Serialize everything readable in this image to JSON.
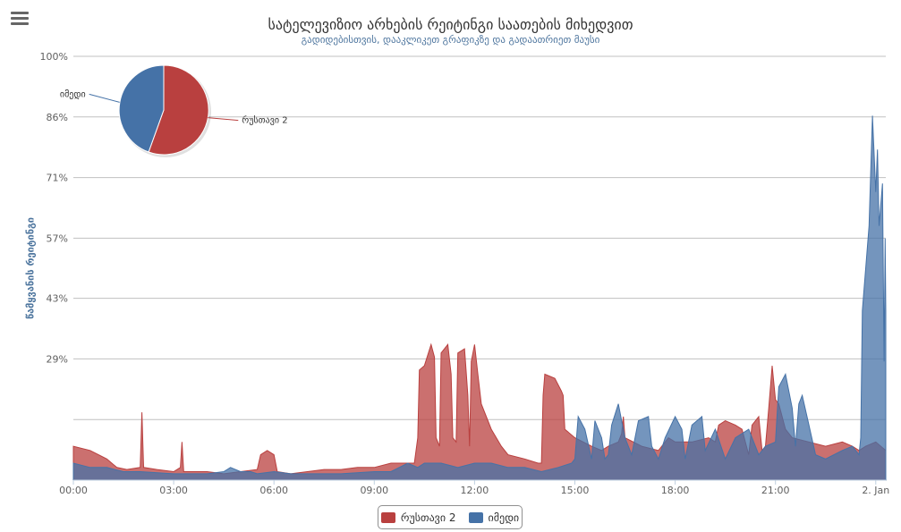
{
  "header": {
    "title": "სატელევიზიო არხების რეიტინგი საათების მიხედვით",
    "subtitle": "გადიდებისთვის, დააკლიკეთ გრაფიკზე და გადაათრიეთ მაუსი",
    "menu_icon": "hamburger-icon"
  },
  "chart_data": {
    "type": "area",
    "ylabel": "წამყვანის რეიტინგი",
    "y_ticks": [
      "100%",
      "86%",
      "71%",
      "57%",
      "43%",
      "29%"
    ],
    "y_tick_values": [
      100,
      86,
      71,
      57,
      43,
      29
    ],
    "ylim": [
      0,
      100
    ],
    "x_ticks": [
      "00:00",
      "03:00",
      "06:00",
      "09:00",
      "12:00",
      "15:00",
      "18:00",
      "21:00",
      "2. Jan"
    ],
    "x_tick_hours": [
      0,
      3,
      6,
      9,
      12,
      15,
      18,
      21,
      24
    ],
    "xlim_hours": [
      0,
      24.3
    ],
    "grid": true,
    "legend_placement": "bottom-center",
    "series": [
      {
        "name": "რუსთავი 2",
        "color": "#b9403f",
        "points": [
          [
            0.0,
            8
          ],
          [
            0.5,
            7
          ],
          [
            1.0,
            5
          ],
          [
            1.3,
            3
          ],
          [
            1.6,
            2.5
          ],
          [
            2.0,
            3
          ],
          [
            2.05,
            16
          ],
          [
            2.1,
            3
          ],
          [
            2.5,
            2.5
          ],
          [
            3.0,
            2
          ],
          [
            3.2,
            3
          ],
          [
            3.25,
            9
          ],
          [
            3.3,
            2
          ],
          [
            4.0,
            2
          ],
          [
            4.5,
            1.5
          ],
          [
            5.0,
            2
          ],
          [
            5.5,
            2.5
          ],
          [
            5.6,
            6
          ],
          [
            5.8,
            7
          ],
          [
            6.0,
            6
          ],
          [
            6.1,
            2
          ],
          [
            6.5,
            1.5
          ],
          [
            7.0,
            2
          ],
          [
            7.5,
            2.5
          ],
          [
            8.0,
            2.5
          ],
          [
            8.5,
            3
          ],
          [
            9.0,
            3
          ],
          [
            9.5,
            4
          ],
          [
            10.0,
            4
          ],
          [
            10.2,
            4
          ],
          [
            10.3,
            10
          ],
          [
            10.35,
            26
          ],
          [
            10.5,
            27
          ],
          [
            10.7,
            32
          ],
          [
            10.8,
            29
          ],
          [
            10.85,
            10
          ],
          [
            10.95,
            8
          ],
          [
            11.0,
            30
          ],
          [
            11.2,
            32
          ],
          [
            11.3,
            25
          ],
          [
            11.35,
            10
          ],
          [
            11.45,
            9
          ],
          [
            11.5,
            30
          ],
          [
            11.7,
            31
          ],
          [
            11.8,
            20
          ],
          [
            11.85,
            8
          ],
          [
            11.9,
            28
          ],
          [
            12.0,
            32
          ],
          [
            12.1,
            25
          ],
          [
            12.2,
            18
          ],
          [
            12.5,
            12
          ],
          [
            12.8,
            8
          ],
          [
            13.0,
            6
          ],
          [
            13.5,
            5
          ],
          [
            13.9,
            4
          ],
          [
            14.0,
            4
          ],
          [
            14.05,
            20
          ],
          [
            14.1,
            25
          ],
          [
            14.4,
            24
          ],
          [
            14.6,
            21
          ],
          [
            14.65,
            20
          ],
          [
            14.7,
            12
          ],
          [
            15.0,
            10
          ],
          [
            15.5,
            8
          ],
          [
            15.8,
            7
          ],
          [
            16.0,
            8
          ],
          [
            16.3,
            9
          ],
          [
            16.4,
            11
          ],
          [
            16.45,
            15
          ],
          [
            16.5,
            10
          ],
          [
            17.0,
            8
          ],
          [
            17.5,
            7
          ],
          [
            17.8,
            10
          ],
          [
            18.0,
            9
          ],
          [
            18.5,
            9
          ],
          [
            19.0,
            10
          ],
          [
            19.2,
            9
          ],
          [
            19.3,
            13
          ],
          [
            19.5,
            14
          ],
          [
            19.8,
            13
          ],
          [
            20.0,
            12
          ],
          [
            20.2,
            6
          ],
          [
            20.3,
            13
          ],
          [
            20.5,
            15
          ],
          [
            20.6,
            7
          ],
          [
            20.7,
            8
          ],
          [
            20.8,
            17
          ],
          [
            20.9,
            27
          ],
          [
            21.0,
            19
          ],
          [
            21.1,
            18
          ],
          [
            21.3,
            12
          ],
          [
            21.5,
            10
          ],
          [
            22.0,
            9
          ],
          [
            22.5,
            8
          ],
          [
            23.0,
            9
          ],
          [
            23.3,
            8
          ],
          [
            23.5,
            7
          ],
          [
            23.7,
            8
          ],
          [
            24.0,
            9
          ],
          [
            24.3,
            7
          ]
        ]
      },
      {
        "name": "იმედი",
        "color": "#4572a7",
        "points": [
          [
            0.0,
            4
          ],
          [
            0.5,
            3
          ],
          [
            1.0,
            3
          ],
          [
            1.5,
            2
          ],
          [
            2.0,
            2
          ],
          [
            3.0,
            1.5
          ],
          [
            4.0,
            1.5
          ],
          [
            4.5,
            2
          ],
          [
            4.7,
            3
          ],
          [
            5.0,
            2
          ],
          [
            5.3,
            2
          ],
          [
            5.5,
            1.5
          ],
          [
            6.0,
            2
          ],
          [
            6.5,
            1.5
          ],
          [
            7.0,
            1.5
          ],
          [
            8.0,
            1.5
          ],
          [
            9.0,
            2
          ],
          [
            9.5,
            2
          ],
          [
            10.0,
            4
          ],
          [
            10.3,
            3
          ],
          [
            10.5,
            4
          ],
          [
            11.0,
            4
          ],
          [
            11.5,
            3
          ],
          [
            12.0,
            4
          ],
          [
            12.5,
            4
          ],
          [
            13.0,
            3
          ],
          [
            13.5,
            3
          ],
          [
            14.0,
            2
          ],
          [
            14.5,
            3
          ],
          [
            14.9,
            4
          ],
          [
            15.0,
            5
          ],
          [
            15.1,
            15
          ],
          [
            15.3,
            12
          ],
          [
            15.5,
            5
          ],
          [
            15.6,
            14
          ],
          [
            15.8,
            10
          ],
          [
            15.9,
            5
          ],
          [
            16.0,
            6
          ],
          [
            16.1,
            13
          ],
          [
            16.3,
            18
          ],
          [
            16.5,
            10
          ],
          [
            16.7,
            6
          ],
          [
            16.9,
            14
          ],
          [
            17.2,
            15
          ],
          [
            17.3,
            8
          ],
          [
            17.5,
            5
          ],
          [
            17.7,
            10
          ],
          [
            18.0,
            15
          ],
          [
            18.2,
            12
          ],
          [
            18.3,
            5
          ],
          [
            18.5,
            13
          ],
          [
            18.8,
            15
          ],
          [
            18.9,
            7
          ],
          [
            19.2,
            12
          ],
          [
            19.5,
            5
          ],
          [
            19.8,
            10
          ],
          [
            20.2,
            12
          ],
          [
            20.5,
            6
          ],
          [
            20.7,
            8
          ],
          [
            21.0,
            9
          ],
          [
            21.1,
            22
          ],
          [
            21.3,
            25
          ],
          [
            21.5,
            17
          ],
          [
            21.6,
            8
          ],
          [
            21.7,
            18
          ],
          [
            21.8,
            20
          ],
          [
            22.0,
            13
          ],
          [
            22.2,
            6
          ],
          [
            22.5,
            5
          ],
          [
            23.0,
            7
          ],
          [
            23.3,
            8
          ],
          [
            23.5,
            6
          ],
          [
            23.55,
            10
          ],
          [
            23.6,
            40
          ],
          [
            23.8,
            60
          ],
          [
            23.9,
            86
          ],
          [
            24.0,
            68
          ],
          [
            24.05,
            78
          ],
          [
            24.1,
            60
          ],
          [
            24.2,
            70
          ],
          [
            24.25,
            28
          ],
          [
            24.28,
            57
          ],
          [
            24.3,
            40
          ]
        ]
      }
    ],
    "pie": {
      "type": "pie",
      "slices": [
        {
          "name": "რუსთავი 2",
          "share": 0.555,
          "color": "#b9403f"
        },
        {
          "name": "იმედი",
          "share": 0.445,
          "color": "#4572a7"
        }
      ]
    }
  }
}
